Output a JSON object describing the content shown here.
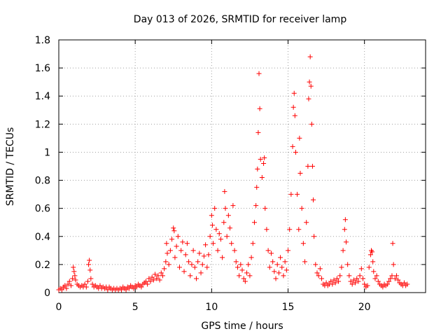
{
  "chart_data": {
    "type": "scatter",
    "title": "Day 013 of 2026, SRMTID for receiver lamp",
    "xlabel": "GPS time / hours",
    "ylabel": "SRMTID / TECUs",
    "xlim": [
      0,
      24
    ],
    "ylim": [
      0,
      1.8
    ],
    "xticks": [
      0,
      5,
      10,
      15,
      20
    ],
    "xtick_labels": [
      "0",
      "5",
      "10",
      "15",
      "20"
    ],
    "yticks": [
      0,
      0.2,
      0.4,
      0.6,
      0.8,
      1.0,
      1.2,
      1.4,
      1.6,
      1.8
    ],
    "ytick_labels": [
      "0",
      "0.2",
      "0.4",
      "0.6",
      "0.8",
      "1",
      "1.2",
      "1.4",
      "1.6",
      "1.8"
    ],
    "grid": true,
    "marker": "+",
    "color": "#ff0000",
    "series": [
      {
        "name": "SRMTID",
        "points": [
          [
            0.0,
            0.02
          ],
          [
            0.1,
            0.03
          ],
          [
            0.2,
            0.02
          ],
          [
            0.3,
            0.04
          ],
          [
            0.4,
            0.05
          ],
          [
            0.5,
            0.03
          ],
          [
            0.6,
            0.06
          ],
          [
            0.7,
            0.08
          ],
          [
            0.8,
            0.05
          ],
          [
            0.9,
            0.1
          ],
          [
            0.95,
            0.18
          ],
          [
            1.0,
            0.15
          ],
          [
            1.05,
            0.12
          ],
          [
            1.1,
            0.09
          ],
          [
            1.2,
            0.06
          ],
          [
            1.3,
            0.05
          ],
          [
            1.4,
            0.04
          ],
          [
            1.5,
            0.05
          ],
          [
            1.6,
            0.04
          ],
          [
            1.7,
            0.06
          ],
          [
            1.8,
            0.04
          ],
          [
            1.9,
            0.08
          ],
          [
            1.95,
            0.2
          ],
          [
            2.0,
            0.23
          ],
          [
            2.05,
            0.16
          ],
          [
            2.1,
            0.1
          ],
          [
            2.2,
            0.06
          ],
          [
            2.3,
            0.04
          ],
          [
            2.4,
            0.05
          ],
          [
            2.5,
            0.04
          ],
          [
            2.6,
            0.03
          ],
          [
            2.7,
            0.05
          ],
          [
            2.8,
            0.03
          ],
          [
            2.9,
            0.04
          ],
          [
            3.0,
            0.03
          ],
          [
            3.1,
            0.04
          ],
          [
            3.2,
            0.02
          ],
          [
            3.3,
            0.04
          ],
          [
            3.4,
            0.03
          ],
          [
            3.5,
            0.02
          ],
          [
            3.6,
            0.03
          ],
          [
            3.7,
            0.02
          ],
          [
            3.8,
            0.03
          ],
          [
            3.9,
            0.02
          ],
          [
            4.0,
            0.03
          ],
          [
            4.1,
            0.02
          ],
          [
            4.2,
            0.04
          ],
          [
            4.3,
            0.03
          ],
          [
            4.4,
            0.02
          ],
          [
            4.5,
            0.04
          ],
          [
            4.6,
            0.03
          ],
          [
            4.7,
            0.05
          ],
          [
            4.8,
            0.04
          ],
          [
            4.9,
            0.03
          ],
          [
            5.0,
            0.05
          ],
          [
            5.1,
            0.04
          ],
          [
            5.2,
            0.06
          ],
          [
            5.3,
            0.05
          ],
          [
            5.4,
            0.04
          ],
          [
            5.5,
            0.06
          ],
          [
            5.6,
            0.07
          ],
          [
            5.7,
            0.08
          ],
          [
            5.8,
            0.06
          ],
          [
            5.9,
            0.1
          ],
          [
            6.0,
            0.08
          ],
          [
            6.1,
            0.11
          ],
          [
            6.2,
            0.09
          ],
          [
            6.3,
            0.13
          ],
          [
            6.4,
            0.1
          ],
          [
            6.5,
            0.12
          ],
          [
            6.6,
            0.09
          ],
          [
            6.7,
            0.14
          ],
          [
            6.8,
            0.12
          ],
          [
            6.9,
            0.17
          ],
          [
            7.0,
            0.22
          ],
          [
            7.05,
            0.35
          ],
          [
            7.1,
            0.28
          ],
          [
            7.2,
            0.2
          ],
          [
            7.3,
            0.3
          ],
          [
            7.4,
            0.38
          ],
          [
            7.5,
            0.46
          ],
          [
            7.55,
            0.44
          ],
          [
            7.6,
            0.25
          ],
          [
            7.7,
            0.33
          ],
          [
            7.8,
            0.4
          ],
          [
            7.9,
            0.18
          ],
          [
            8.0,
            0.3
          ],
          [
            8.1,
            0.36
          ],
          [
            8.2,
            0.15
          ],
          [
            8.3,
            0.27
          ],
          [
            8.4,
            0.35
          ],
          [
            8.5,
            0.22
          ],
          [
            8.6,
            0.12
          ],
          [
            8.7,
            0.2
          ],
          [
            8.8,
            0.3
          ],
          [
            8.9,
            0.18
          ],
          [
            9.0,
            0.1
          ],
          [
            9.1,
            0.22
          ],
          [
            9.2,
            0.28
          ],
          [
            9.3,
            0.14
          ],
          [
            9.4,
            0.2
          ],
          [
            9.5,
            0.26
          ],
          [
            9.6,
            0.34
          ],
          [
            9.7,
            0.18
          ],
          [
            9.8,
            0.27
          ],
          [
            9.9,
            0.4
          ],
          [
            10.0,
            0.55
          ],
          [
            10.05,
            0.48
          ],
          [
            10.1,
            0.35
          ],
          [
            10.2,
            0.6
          ],
          [
            10.3,
            0.45
          ],
          [
            10.4,
            0.3
          ],
          [
            10.5,
            0.42
          ],
          [
            10.6,
            0.38
          ],
          [
            10.7,
            0.25
          ],
          [
            10.8,
            0.5
          ],
          [
            10.85,
            0.72
          ],
          [
            10.9,
            0.6
          ],
          [
            11.0,
            0.4
          ],
          [
            11.1,
            0.55
          ],
          [
            11.2,
            0.46
          ],
          [
            11.3,
            0.35
          ],
          [
            11.4,
            0.62
          ],
          [
            11.5,
            0.3
          ],
          [
            11.6,
            0.22
          ],
          [
            11.7,
            0.18
          ],
          [
            11.8,
            0.12
          ],
          [
            11.9,
            0.2
          ],
          [
            12.0,
            0.16
          ],
          [
            12.1,
            0.1
          ],
          [
            12.2,
            0.08
          ],
          [
            12.3,
            0.14
          ],
          [
            12.4,
            0.2
          ],
          [
            12.5,
            0.12
          ],
          [
            12.6,
            0.25
          ],
          [
            12.7,
            0.35
          ],
          [
            12.8,
            0.5
          ],
          [
            12.9,
            0.62
          ],
          [
            12.95,
            0.75
          ],
          [
            13.0,
            0.88
          ],
          [
            13.05,
            1.14
          ],
          [
            13.1,
            1.56
          ],
          [
            13.15,
            1.31
          ],
          [
            13.2,
            0.95
          ],
          [
            13.3,
            0.82
          ],
          [
            13.4,
            0.92
          ],
          [
            13.45,
            0.96
          ],
          [
            13.5,
            0.6
          ],
          [
            13.6,
            0.45
          ],
          [
            13.7,
            0.3
          ],
          [
            13.8,
            0.18
          ],
          [
            13.9,
            0.28
          ],
          [
            14.0,
            0.22
          ],
          [
            14.1,
            0.15
          ],
          [
            14.2,
            0.1
          ],
          [
            14.3,
            0.2
          ],
          [
            14.4,
            0.14
          ],
          [
            14.5,
            0.25
          ],
          [
            14.6,
            0.18
          ],
          [
            14.7,
            0.12
          ],
          [
            14.8,
            0.22
          ],
          [
            14.9,
            0.16
          ],
          [
            15.0,
            0.3
          ],
          [
            15.1,
            0.45
          ],
          [
            15.2,
            0.7
          ],
          [
            15.3,
            1.04
          ],
          [
            15.35,
            1.32
          ],
          [
            15.4,
            1.42
          ],
          [
            15.45,
            1.26
          ],
          [
            15.5,
            1.0
          ],
          [
            15.6,
            0.7
          ],
          [
            15.7,
            0.45
          ],
          [
            15.75,
            1.1
          ],
          [
            15.8,
            0.85
          ],
          [
            15.9,
            0.6
          ],
          [
            16.0,
            0.35
          ],
          [
            16.1,
            0.22
          ],
          [
            16.2,
            0.5
          ],
          [
            16.3,
            0.9
          ],
          [
            16.35,
            1.38
          ],
          [
            16.4,
            1.5
          ],
          [
            16.45,
            1.68
          ],
          [
            16.5,
            1.47
          ],
          [
            16.55,
            1.2
          ],
          [
            16.6,
            0.9
          ],
          [
            16.65,
            0.66
          ],
          [
            16.7,
            0.4
          ],
          [
            16.8,
            0.2
          ],
          [
            16.9,
            0.14
          ],
          [
            17.0,
            0.12
          ],
          [
            17.1,
            0.17
          ],
          [
            17.2,
            0.1
          ],
          [
            17.3,
            0.06
          ],
          [
            17.4,
            0.05
          ],
          [
            17.5,
            0.07
          ],
          [
            17.6,
            0.05
          ],
          [
            17.7,
            0.06
          ],
          [
            17.8,
            0.08
          ],
          [
            17.9,
            0.06
          ],
          [
            18.0,
            0.09
          ],
          [
            18.1,
            0.07
          ],
          [
            18.2,
            0.1
          ],
          [
            18.3,
            0.08
          ],
          [
            18.4,
            0.12
          ],
          [
            18.5,
            0.18
          ],
          [
            18.6,
            0.3
          ],
          [
            18.7,
            0.45
          ],
          [
            18.75,
            0.52
          ],
          [
            18.8,
            0.36
          ],
          [
            18.9,
            0.2
          ],
          [
            19.0,
            0.12
          ],
          [
            19.1,
            0.08
          ],
          [
            19.2,
            0.06
          ],
          [
            19.3,
            0.09
          ],
          [
            19.4,
            0.07
          ],
          [
            19.5,
            0.1
          ],
          [
            19.6,
            0.08
          ],
          [
            19.7,
            0.12
          ],
          [
            19.8,
            0.17
          ],
          [
            19.9,
            0.1
          ],
          [
            20.0,
            0.06
          ],
          [
            20.1,
            0.04
          ],
          [
            20.2,
            0.05
          ],
          [
            20.3,
            0.18
          ],
          [
            20.4,
            0.27
          ],
          [
            20.45,
            0.3
          ],
          [
            20.5,
            0.29
          ],
          [
            20.55,
            0.22
          ],
          [
            20.6,
            0.15
          ],
          [
            20.7,
            0.1
          ],
          [
            20.8,
            0.12
          ],
          [
            20.9,
            0.08
          ],
          [
            21.0,
            0.06
          ],
          [
            21.1,
            0.05
          ],
          [
            21.2,
            0.04
          ],
          [
            21.3,
            0.06
          ],
          [
            21.4,
            0.05
          ],
          [
            21.5,
            0.06
          ],
          [
            21.6,
            0.08
          ],
          [
            21.7,
            0.1
          ],
          [
            21.8,
            0.12
          ],
          [
            21.85,
            0.35
          ],
          [
            21.9,
            0.2
          ],
          [
            22.0,
            0.1
          ],
          [
            22.1,
            0.12
          ],
          [
            22.2,
            0.09
          ],
          [
            22.3,
            0.07
          ],
          [
            22.4,
            0.06
          ],
          [
            22.5,
            0.05
          ],
          [
            22.6,
            0.07
          ],
          [
            22.7,
            0.05
          ],
          [
            22.8,
            0.06
          ]
        ]
      }
    ]
  }
}
